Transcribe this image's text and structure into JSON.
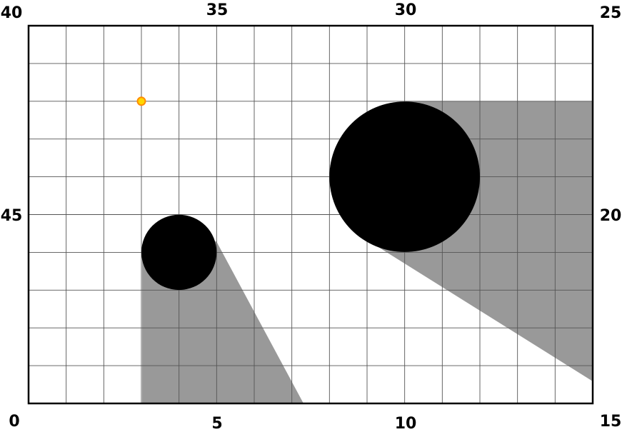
{
  "grid": {
    "columns": 15,
    "rows": 10,
    "line_color": "#555555",
    "border_color": "#000000",
    "background": "#ffffff"
  },
  "axis_labels": {
    "bottom_left": "0",
    "bottom_5": "5",
    "bottom_10": "10",
    "bottom_right": "15",
    "top_left": "40",
    "top_35": "35",
    "top_30": "30",
    "top_right": "25",
    "left_middle": "45",
    "right_middle": "20"
  },
  "scene": {
    "light_source": {
      "col": 3,
      "row": 2,
      "fill": "#ffd700",
      "stroke": "#ff8c00"
    },
    "obstacles": [
      {
        "name": "small-circle",
        "col": 4,
        "row": 6,
        "radius_cells": 1,
        "fill": "#000000"
      },
      {
        "name": "large-circle",
        "col": 10,
        "row": 4,
        "radius_cells": 2,
        "fill": "#000000"
      }
    ],
    "shadow_color": "#999999"
  }
}
